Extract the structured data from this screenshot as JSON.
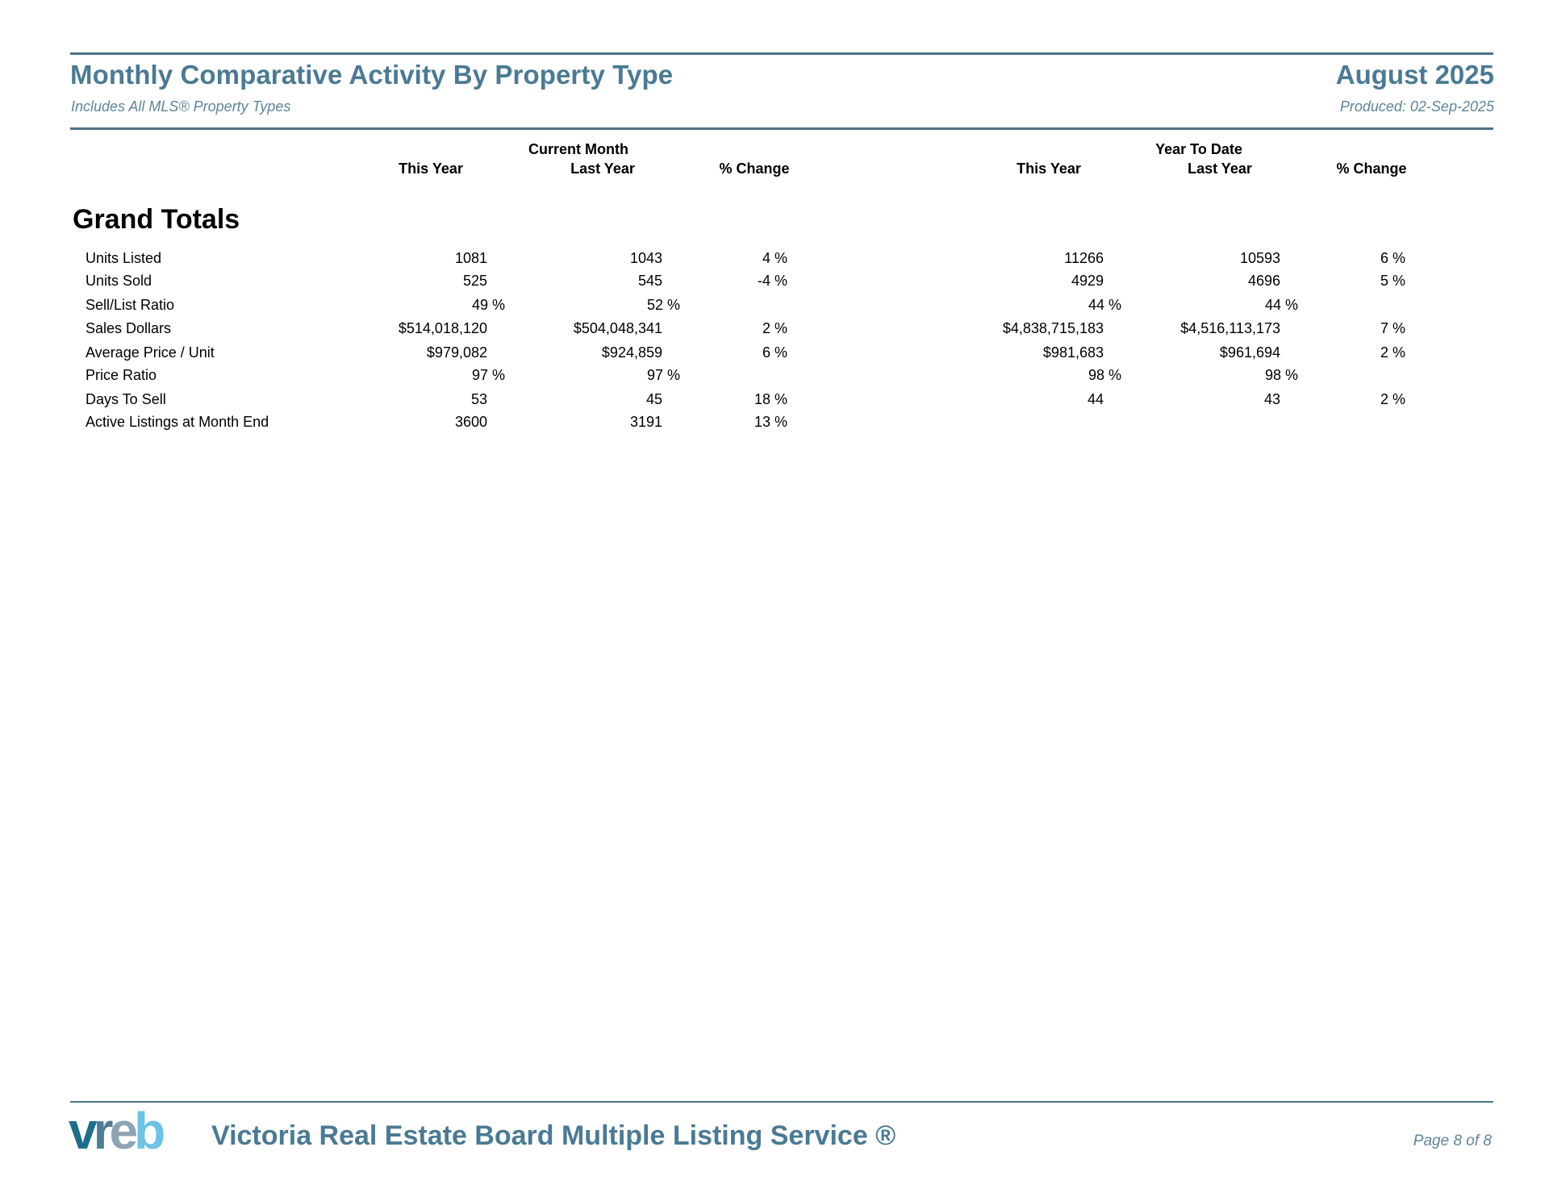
{
  "header": {
    "title": "Monthly Comparative Activity By Property Type",
    "subtitle": "Includes All MLS® Property Types",
    "period": "August 2025",
    "produced": "Produced: 02-Sep-2025"
  },
  "columns": {
    "current_month": "Current Month",
    "year_to_date": "Year To Date",
    "this_year": "This Year",
    "last_year": "Last Year",
    "pct_change": "% Change"
  },
  "section": {
    "title": "Grand Totals",
    "rows": [
      {
        "label": "Units Listed",
        "cm_this": "1081",
        "cm_last": "1043",
        "cm_pct": "4 %",
        "ytd_this": "11266",
        "ytd_last": "10593",
        "ytd_pct": "6 %"
      },
      {
        "label": "Units Sold",
        "cm_this": "525",
        "cm_last": "545",
        "cm_pct": "-4 %",
        "ytd_this": "4929",
        "ytd_last": "4696",
        "ytd_pct": "5 %"
      },
      {
        "label": "Sell/List Ratio",
        "cm_this": "49 %",
        "cm_last": "52 %",
        "cm_pct": "",
        "ytd_this": "44 %",
        "ytd_last": "44 %",
        "ytd_pct": ""
      },
      {
        "label": "Sales Dollars",
        "cm_this": "$514,018,120",
        "cm_last": "$504,048,341",
        "cm_pct": "2 %",
        "ytd_this": "$4,838,715,183",
        "ytd_last": "$4,516,113,173",
        "ytd_pct": "7 %"
      },
      {
        "label": "Average Price / Unit",
        "cm_this": "$979,082",
        "cm_last": "$924,859",
        "cm_pct": "6 %",
        "ytd_this": "$981,683",
        "ytd_last": "$961,694",
        "ytd_pct": "2 %"
      },
      {
        "label": "Price Ratio",
        "cm_this": "97 %",
        "cm_last": "97 %",
        "cm_pct": "",
        "ytd_this": "98 %",
        "ytd_last": "98 %",
        "ytd_pct": ""
      },
      {
        "label": "Days To Sell",
        "cm_this": "53",
        "cm_last": "45",
        "cm_pct": "18 %",
        "ytd_this": "44",
        "ytd_last": "43",
        "ytd_pct": "2 %"
      },
      {
        "label": "Active Listings at Month End",
        "cm_this": "3600",
        "cm_last": "3191",
        "cm_pct": "13 %",
        "ytd_this": "",
        "ytd_last": "",
        "ytd_pct": ""
      }
    ]
  },
  "footer": {
    "logo_text": "vreb",
    "organization": "Victoria Real Estate Board Multiple Listing Service ®",
    "page": "Page 8 of 8"
  },
  "colors": {
    "brand": "#4a7a94",
    "logo_v": "#1e6e8e",
    "logo_r": "#5a7e96",
    "logo_e": "#8ea3b4",
    "logo_b": "#6cc3e6"
  }
}
